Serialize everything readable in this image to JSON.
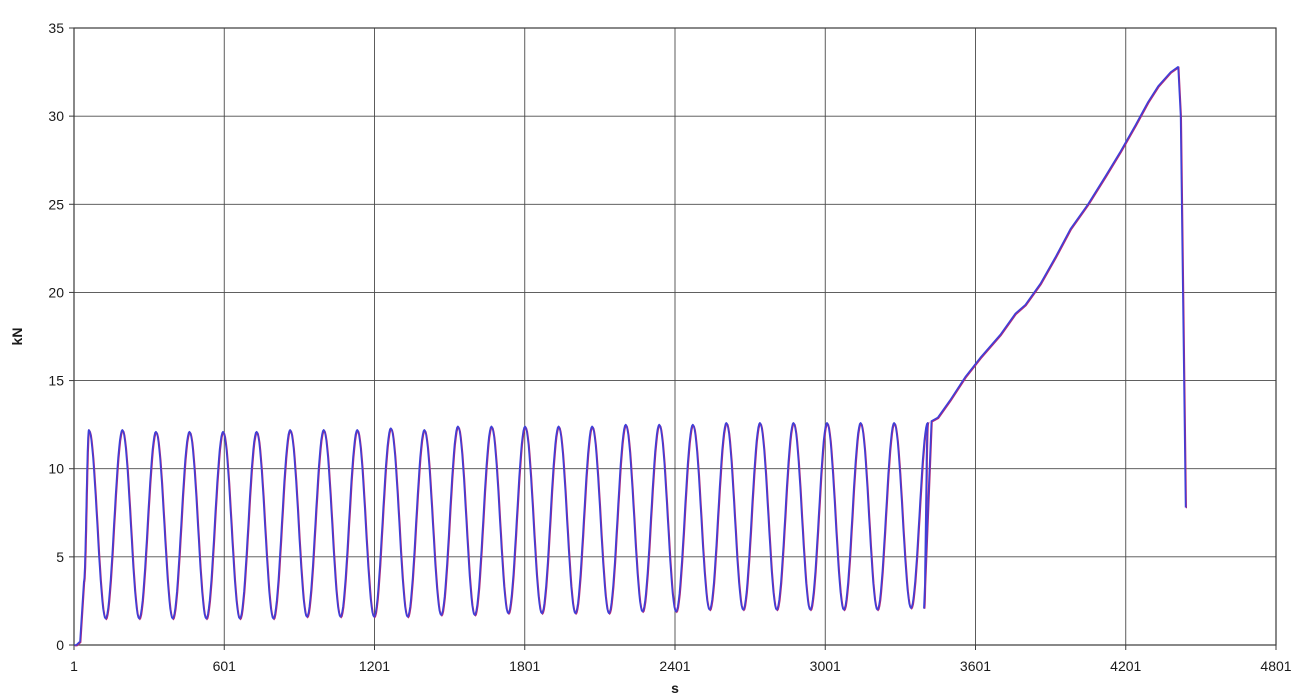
{
  "chart_data": {
    "type": "line",
    "title": "",
    "xlabel": "s",
    "ylabel": "kN",
    "xlim": [
      1,
      4801
    ],
    "ylim": [
      0,
      35
    ],
    "x_ticks": [
      1,
      601,
      1201,
      1801,
      2401,
      3001,
      3601,
      4201,
      4801
    ],
    "y_ticks": [
      0,
      5,
      10,
      15,
      20,
      25,
      30,
      35
    ],
    "grid": true,
    "legend": "none",
    "colors": {
      "line": "#3f3fd8",
      "underline": "#b0287a",
      "grid": "#4a4a4a"
    },
    "cyclic_segment": {
      "start_x": 60,
      "period": 134,
      "cycles": 26,
      "peaks": [
        12.2,
        12.2,
        12.1,
        12.1,
        12.1,
        12.1,
        12.2,
        12.2,
        12.2,
        12.3,
        12.2,
        12.4,
        12.4,
        12.4,
        12.4,
        12.4,
        12.5,
        12.5,
        12.5,
        12.6,
        12.6,
        12.6,
        12.6,
        12.6,
        12.6,
        12.6
      ],
      "valleys": [
        1.5,
        1.5,
        1.5,
        1.5,
        1.5,
        1.5,
        1.6,
        1.6,
        1.6,
        1.6,
        1.7,
        1.7,
        1.8,
        1.8,
        1.8,
        1.8,
        1.9,
        1.9,
        2.0,
        2.0,
        2.0,
        2.0,
        2.0,
        2.0,
        2.1
      ]
    },
    "series": [
      {
        "values_x": [
          1,
          10,
          25,
          40,
          3395,
          3425,
          3450,
          3500,
          3560,
          3620,
          3700,
          3760,
          3800,
          3860,
          3920,
          3980,
          4050,
          4120,
          4180,
          4240,
          4290,
          4330,
          4380,
          4410,
          4420,
          4440
        ],
        "values_y": [
          0,
          0,
          0.2,
          3.6,
          2.1,
          12.7,
          12.9,
          13.9,
          15.2,
          16.3,
          17.6,
          18.8,
          19.3,
          20.5,
          22.0,
          23.6,
          25.0,
          26.6,
          28.0,
          29.5,
          30.8,
          31.7,
          32.5,
          32.8,
          30.0,
          7.8
        ]
      }
    ]
  }
}
